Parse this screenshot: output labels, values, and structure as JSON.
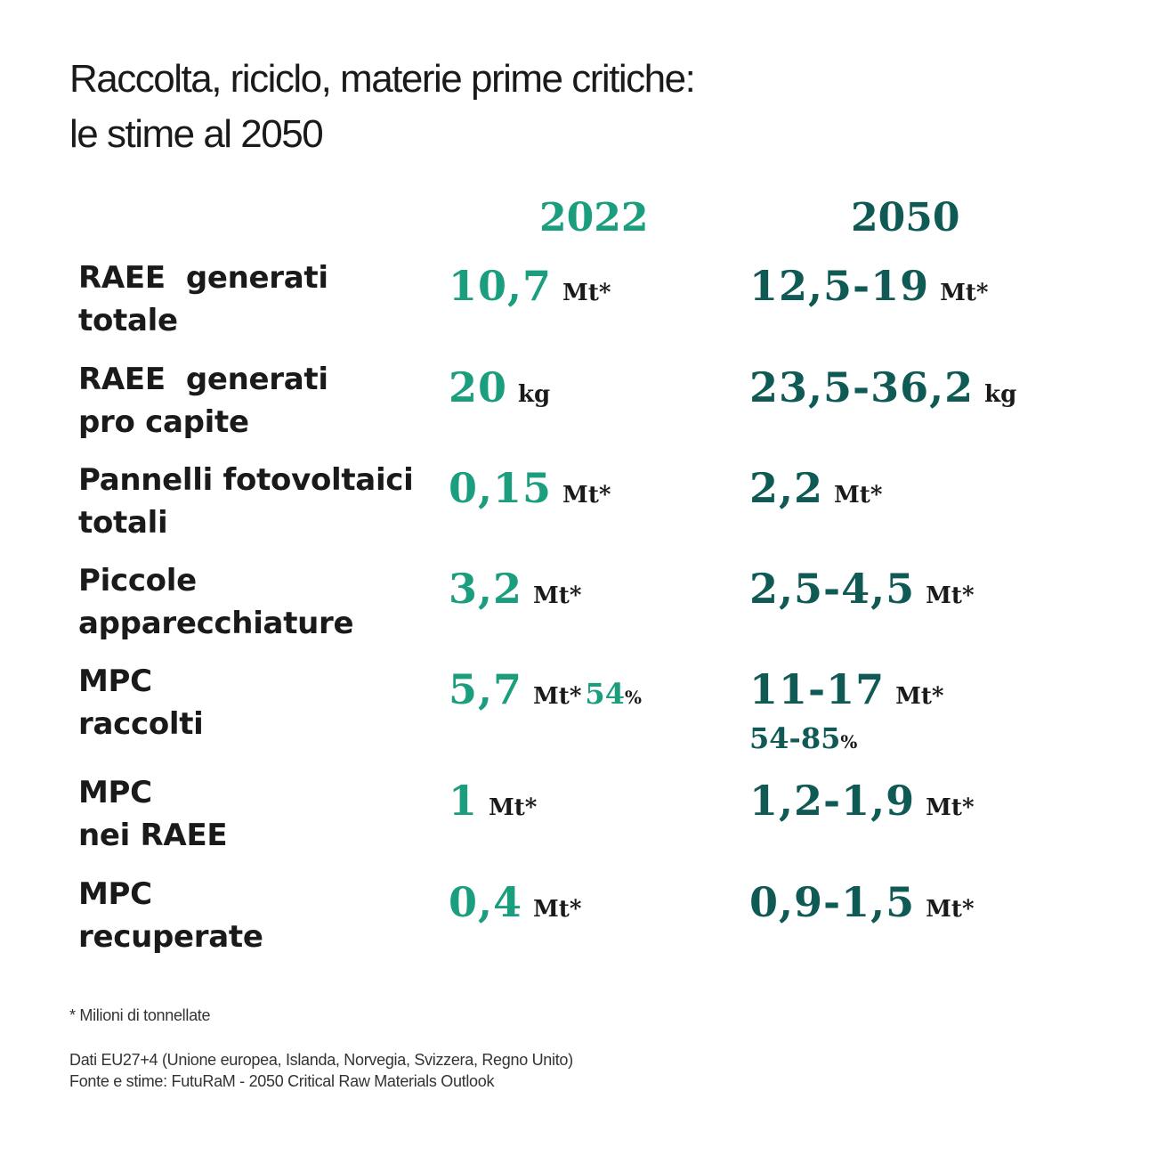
{
  "title": {
    "line1": "Raccolta, riciclo, materie prime critiche:",
    "line2": "le stime al 2050"
  },
  "columns": {
    "year_a": "2022",
    "year_b": "2050"
  },
  "colors": {
    "green": "#1a9e7e",
    "teal": "#0f5a55",
    "text": "#1a1a1a"
  },
  "rows": [
    {
      "label1": "RAEE  generati",
      "label2": "totale",
      "v2022": "10,7",
      "u2022": "Mt*",
      "v2050": "12,5-19",
      "u2050": "Mt*"
    },
    {
      "label1": "RAEE  generati",
      "label2": "pro capite",
      "v2022": "20",
      "u2022": "kg",
      "v2050": "23,5-36,2",
      "u2050": "kg"
    },
    {
      "label1": "Pannelli fotovoltaici",
      "label2": "totali",
      "v2022": "0,15",
      "u2022": "Mt*",
      "v2050": "2,2",
      "u2050": "Mt*"
    },
    {
      "label1": "Piccole",
      "label2": "apparecchiature",
      "v2022": "3,2",
      "u2022": "Mt*",
      "v2050": "2,5-4,5",
      "u2050": "Mt*"
    },
    {
      "label1": "MPC",
      "label2": "raccolti",
      "v2022": "5,7",
      "u2022": "Mt*",
      "p2022": "54",
      "psym": "%",
      "v2050": "11-17",
      "u2050": "Mt*",
      "p2050": "54-85"
    },
    {
      "label1": "MPC",
      "label2": "nei RAEE",
      "v2022": "1",
      "u2022": "Mt*",
      "v2050": "1,2-1,9",
      "u2050": "Mt*"
    },
    {
      "label1": "MPC",
      "label2": "recuperate",
      "v2022": "0,4",
      "u2022": "Mt*",
      "v2050": "0,9-1,5",
      "u2050": "Mt*"
    }
  ],
  "footnote": "* Milioni di tonnellate",
  "source": {
    "line1": "Dati EU27+4 (Unione europea, Islanda, Norvegia, Svizzera, Regno Unito)",
    "line2": "Fonte e stime: FutuRaM - 2050 Critical Raw Materials Outlook"
  }
}
